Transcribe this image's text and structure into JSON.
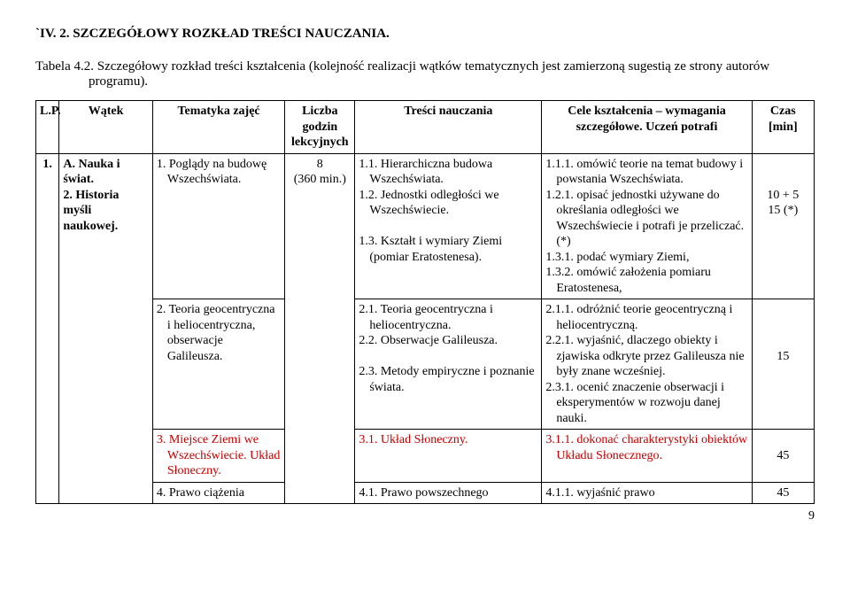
{
  "sectionTitle": "`IV. 2.        SZCZEGÓŁOWY  ROZKŁAD  TREŚCI  NAUCZANIA.",
  "tableCaption": "Tabela 4.2. Szczegółowy rozkład treści kształcenia (kolejność realizacji wątków tematycznych  jest zamierzoną sugestią ze strony autorów",
  "tableCaptionIndent": "programu).",
  "headers": {
    "lp": "L.P.",
    "watek": "Wątek",
    "tematyka": "Tematyka zajęć",
    "liczba": "Liczba godzin lekcyjnych",
    "tresci": "Treści nauczania",
    "cele": "Cele kształcenia – wymagania szczegółowe. Uczeń potrafi",
    "czas": "Czas [min]"
  },
  "rows": [
    {
      "lp": "1.",
      "watek": "A. Nauka i świat.\n2. Historia myśli naukowej.",
      "tematyka": "1. Poglądy na budowę Wszechświata.",
      "liczba": "8\n(360 min.)",
      "tresci": [
        "1.1. Hierarchiczna budowa Wszechświata.",
        "1.2. Jednostki odległości we Wszechświecie.",
        "1.3. Kształt i wymiary Ziemi (pomiar Eratostenesa)."
      ],
      "cele": [
        "1.1.1. omówić teorie na temat budowy i powstania Wszechświata.",
        "1.2.1. opisać jednostki używane do określania odległości we Wszechświecie i potrafi je przeliczać.(*)",
        "1.3.1.  podać wymiary Ziemi,",
        "1.3.2.  omówić założenia pomiaru Eratostenesa,"
      ],
      "czas": "10 + 5\n15 (*)"
    },
    {
      "tematyka": "2. Teoria geocentryczna i heliocentryczna, obserwacje Galileusza.",
      "tresci": [
        "2.1. Teoria geocentryczna i heliocentryczna.",
        "2.2. Obserwacje Galileusza.",
        "2.3. Metody empiryczne i poznanie świata."
      ],
      "cele": [
        "2.1.1. odróżnić teorie geocentryczną i heliocentryczną.",
        "2.2.1. wyjaśnić, dlaczego obiekty i zjawiska odkryte przez Galileusza nie były znane wcześniej.",
        "2.3.1. ocenić znaczenie obserwacji i eksperymentów w rozwoju danej nauki."
      ],
      "czas": "15"
    },
    {
      "tematyka_red": "3. Miejsce Ziemi we Wszechświecie. Układ Słoneczny.",
      "tresci_red": "3.1. Układ Słoneczny.",
      "cele_red": [
        "3.1.1.  dokonać charakterystyki obiektów Układu Słonecznego."
      ],
      "czas": "45"
    },
    {
      "tematyka": "4. Prawo ciążenia",
      "tresci": "4.1. Prawo powszechnego",
      "cele": "4.1.1. wyjaśnić prawo",
      "czas": "45"
    }
  ],
  "pageNum": "9"
}
